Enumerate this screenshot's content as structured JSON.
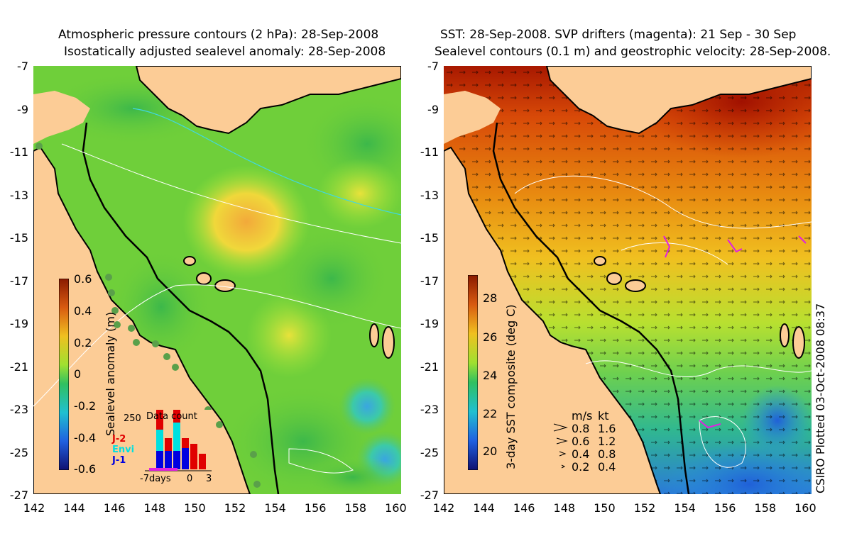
{
  "left_panel": {
    "title_line1": "Atmospheric pressure contours (2 hPa): 28-Sep-2008",
    "title_line2": "Isostatically adjusted sealevel anomaly: 28-Sep-2008",
    "colorbar_label": "Sealevel anomaly (m)",
    "colorbar_ticks": [
      "0.6",
      "0.4",
      "0.2",
      "0",
      "-0.2",
      "-0.4",
      "-0.6"
    ],
    "inset": {
      "title": "Data count",
      "ymax": "250",
      "legend": [
        {
          "name": "J-2",
          "color": "#e00000"
        },
        {
          "name": "Envi",
          "color": "#00e0e0"
        },
        {
          "name": "J-1",
          "color": "#0000e0"
        }
      ],
      "xlabels": [
        "-7days",
        "0",
        "3"
      ]
    }
  },
  "right_panel": {
    "title_line1": "SST: 28-Sep-2008. SVP drifters (magenta): 21 Sep - 30 Sep",
    "title_line2": "Sealevel contours (0.1 m) and geostrophic velocity: 28-Sep-2008.",
    "colorbar_label": "3-day SST composite (deg C)",
    "colorbar_ticks": [
      "28",
      "26",
      "24",
      "22",
      "20"
    ],
    "velocity_key": {
      "header_ms": "m/s",
      "header_kt": "kt",
      "rows": [
        {
          "ms": "0.8",
          "kt": "1.6"
        },
        {
          "ms": "0.6",
          "kt": "1.2"
        },
        {
          "ms": "0.4",
          "kt": "0.8"
        },
        {
          "ms": "0.2",
          "kt": "0.4"
        }
      ]
    },
    "credit": "CSIRO Plotted 03-Oct-2008 08:37"
  },
  "axes": {
    "y_ticks": [
      "-7",
      "-9",
      "-11",
      "-13",
      "-15",
      "-17",
      "-19",
      "-21",
      "-23",
      "-25",
      "-27"
    ],
    "x_ticks": [
      "142",
      "144",
      "146",
      "148",
      "150",
      "152",
      "154",
      "156",
      "158",
      "160"
    ]
  },
  "colors": {
    "land": "#fccc96",
    "ocean_green": "#7ed92f",
    "sst_red": "#a01c00"
  }
}
